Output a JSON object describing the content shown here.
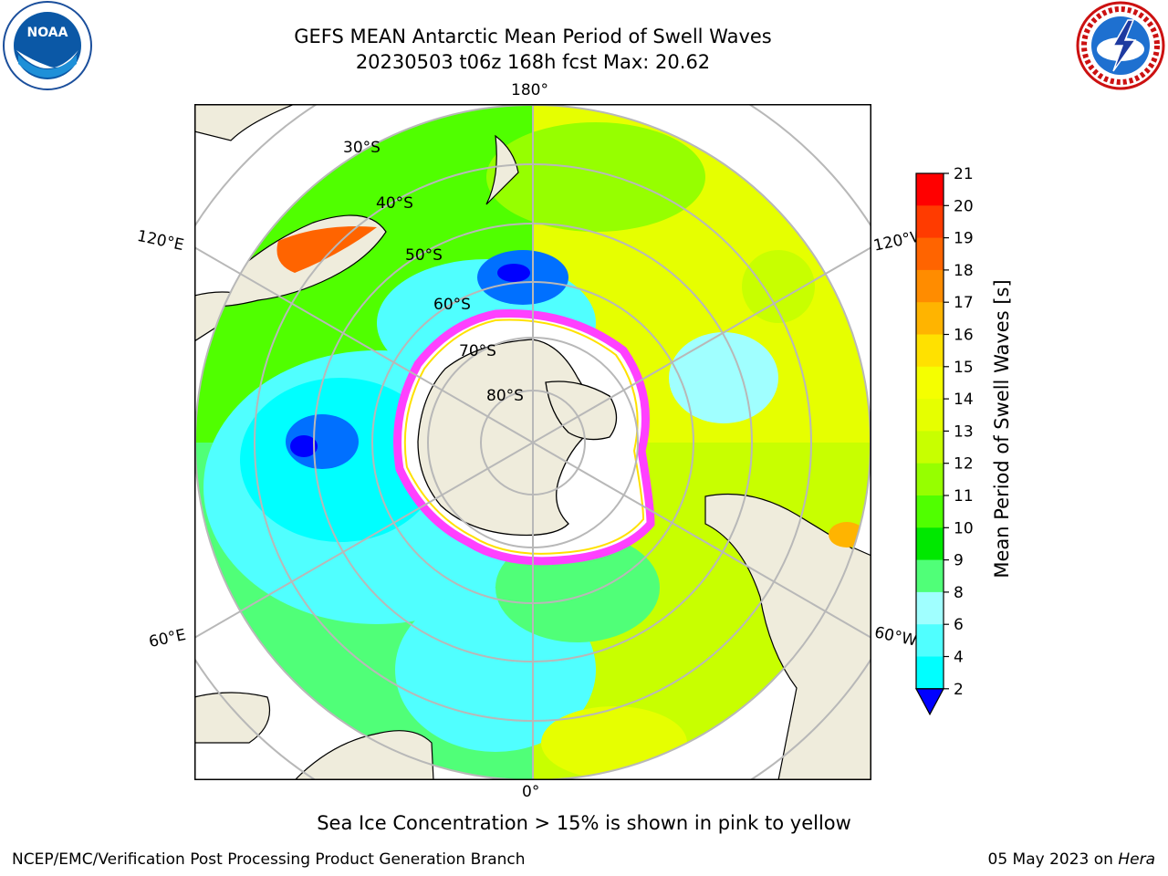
{
  "header": {
    "title_line1": "GEFS MEAN Antarctic Mean Period of Swell Waves",
    "title_line2": "20230503 t06z 168h fcst   Max: 20.62"
  },
  "logos": {
    "left": {
      "icon": "noaa-logo-icon",
      "text": "NOAA"
    },
    "right": {
      "icon": "national-weather-service-logo-icon",
      "text": "NATIONAL WEATHER SERVICE"
    }
  },
  "map": {
    "projection": "south-polar-stereographic",
    "longitude_labels": [
      "180°",
      "120°E",
      "120°W",
      "60°E",
      "60°W",
      "0°"
    ],
    "latitude_labels": [
      "30°S",
      "40°S",
      "50°S",
      "60°S",
      "70°S",
      "80°S"
    ],
    "colors": {
      "land": "#efecdc",
      "sea_ice_edge": "#ff40ff",
      "ice_interior": "#ffffff",
      "grid": "#b8b8b8"
    }
  },
  "colorbar": {
    "label": "Mean Period of Swell Waves [s]",
    "ticks": [
      "21",
      "20",
      "19",
      "18",
      "17",
      "16",
      "15",
      "14",
      "13",
      "12",
      "11",
      "10",
      "9",
      "8",
      "6",
      "4",
      "2"
    ],
    "colors": [
      "#ff0000",
      "#ff3b00",
      "#ff6400",
      "#ff8c00",
      "#ffb400",
      "#ffe100",
      "#f5ff00",
      "#e6ff00",
      "#c8ff00",
      "#96ff00",
      "#50ff00",
      "#00e800",
      "#50ff78",
      "#a0ffff",
      "#50ffff",
      "#00ffff",
      "#00d4ff",
      "#0070ff",
      "#0000ff"
    ]
  },
  "note": "Sea Ice Concentration > 15% is shown in pink to yellow",
  "footer": {
    "left": "NCEP/EMC/Verification Post Processing Product Generation Branch",
    "right_prefix": "05 May 2023 on ",
    "right_host": "Hera"
  }
}
